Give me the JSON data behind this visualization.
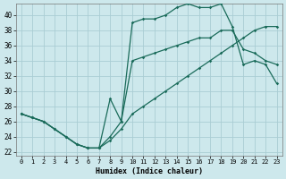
{
  "xlabel": "Humidex (Indice chaleur)",
  "background_color": "#cde8ec",
  "grid_color": "#aacdd4",
  "line_color": "#1a6b5a",
  "xlim": [
    -0.5,
    23.5
  ],
  "ylim": [
    21.5,
    41.5
  ],
  "xticks": [
    0,
    1,
    2,
    3,
    4,
    5,
    6,
    7,
    8,
    9,
    10,
    11,
    12,
    13,
    14,
    15,
    16,
    17,
    18,
    19,
    20,
    21,
    22,
    23
  ],
  "yticks": [
    22,
    24,
    26,
    28,
    30,
    32,
    34,
    36,
    38,
    40
  ],
  "line1_x": [
    0,
    1,
    2,
    3,
    4,
    5,
    6,
    7,
    8,
    9,
    10,
    11,
    12,
    13,
    14,
    15,
    16,
    17,
    18,
    19,
    20,
    21,
    22,
    23
  ],
  "line1_y": [
    27,
    26.5,
    26,
    25,
    24,
    23,
    22.5,
    22.5,
    29,
    26,
    39,
    39.5,
    39.5,
    40,
    41,
    41.5,
    41,
    41,
    41.5,
    38.5,
    33.5,
    34,
    33.5,
    31
  ],
  "line2_x": [
    0,
    1,
    2,
    3,
    4,
    5,
    6,
    7,
    8,
    9,
    10,
    11,
    12,
    13,
    14,
    15,
    16,
    17,
    18,
    19,
    20,
    21,
    22,
    23
  ],
  "line2_y": [
    27,
    26.5,
    26,
    25,
    24,
    23,
    22.5,
    22.5,
    24,
    26,
    34,
    34.5,
    35,
    35.5,
    36,
    36.5,
    37,
    37,
    38,
    38,
    35.5,
    35,
    34,
    33.5
  ],
  "line3_x": [
    0,
    1,
    2,
    3,
    4,
    5,
    6,
    7,
    8,
    9,
    10,
    11,
    12,
    13,
    14,
    15,
    16,
    17,
    18,
    19,
    20,
    21,
    22,
    23
  ],
  "line3_y": [
    27,
    26.5,
    26,
    25,
    24,
    23,
    22.5,
    22.5,
    23.5,
    25,
    27,
    28,
    29,
    30,
    31,
    32,
    33,
    34,
    35,
    36,
    37,
    38,
    38.5,
    38.5
  ]
}
